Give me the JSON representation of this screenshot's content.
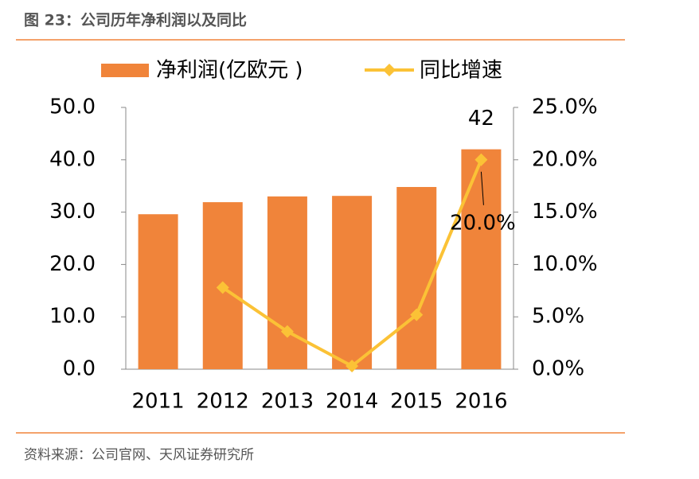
{
  "chart_data": {
    "type": "bar-line",
    "title": "图 23：公司历年净利润以及同比",
    "source": "资料来源：公司官网、天风证券研究所",
    "categories": [
      "2011",
      "2012",
      "2013",
      "2014",
      "2015",
      "2016"
    ],
    "series": [
      {
        "name": "净利润(亿欧元 )",
        "type": "bar",
        "color": "#f0843a",
        "values": [
          29.6,
          31.9,
          33.0,
          33.1,
          34.8,
          42
        ],
        "value_labels": [
          null,
          null,
          null,
          null,
          null,
          "42"
        ]
      },
      {
        "name": "同比增速",
        "type": "line",
        "axis": "y2",
        "color": "#fbc236",
        "values": [
          null,
          7.8,
          3.6,
          0.3,
          5.2,
          20.0
        ],
        "value_labels": [
          null,
          null,
          null,
          null,
          null,
          "20.0%"
        ]
      }
    ],
    "ylim": [
      0,
      50
    ],
    "yticks": [
      {
        "value": 0,
        "label": "0.0"
      },
      {
        "value": 10,
        "label": "10.0"
      },
      {
        "value": 20,
        "label": "20.0"
      },
      {
        "value": 30,
        "label": "30.0"
      },
      {
        "value": 40,
        "label": "40.0"
      },
      {
        "value": 50,
        "label": "50.0"
      }
    ],
    "y2lim": [
      0,
      25
    ],
    "y2ticks": [
      {
        "value": 0,
        "label": "0.0%"
      },
      {
        "value": 5,
        "label": "5.0%"
      },
      {
        "value": 10,
        "label": "10.0%"
      },
      {
        "value": 15,
        "label": "15.0%"
      },
      {
        "value": 20,
        "label": "20.0%"
      },
      {
        "value": 25,
        "label": "25.0%"
      }
    ],
    "legend": "top"
  }
}
